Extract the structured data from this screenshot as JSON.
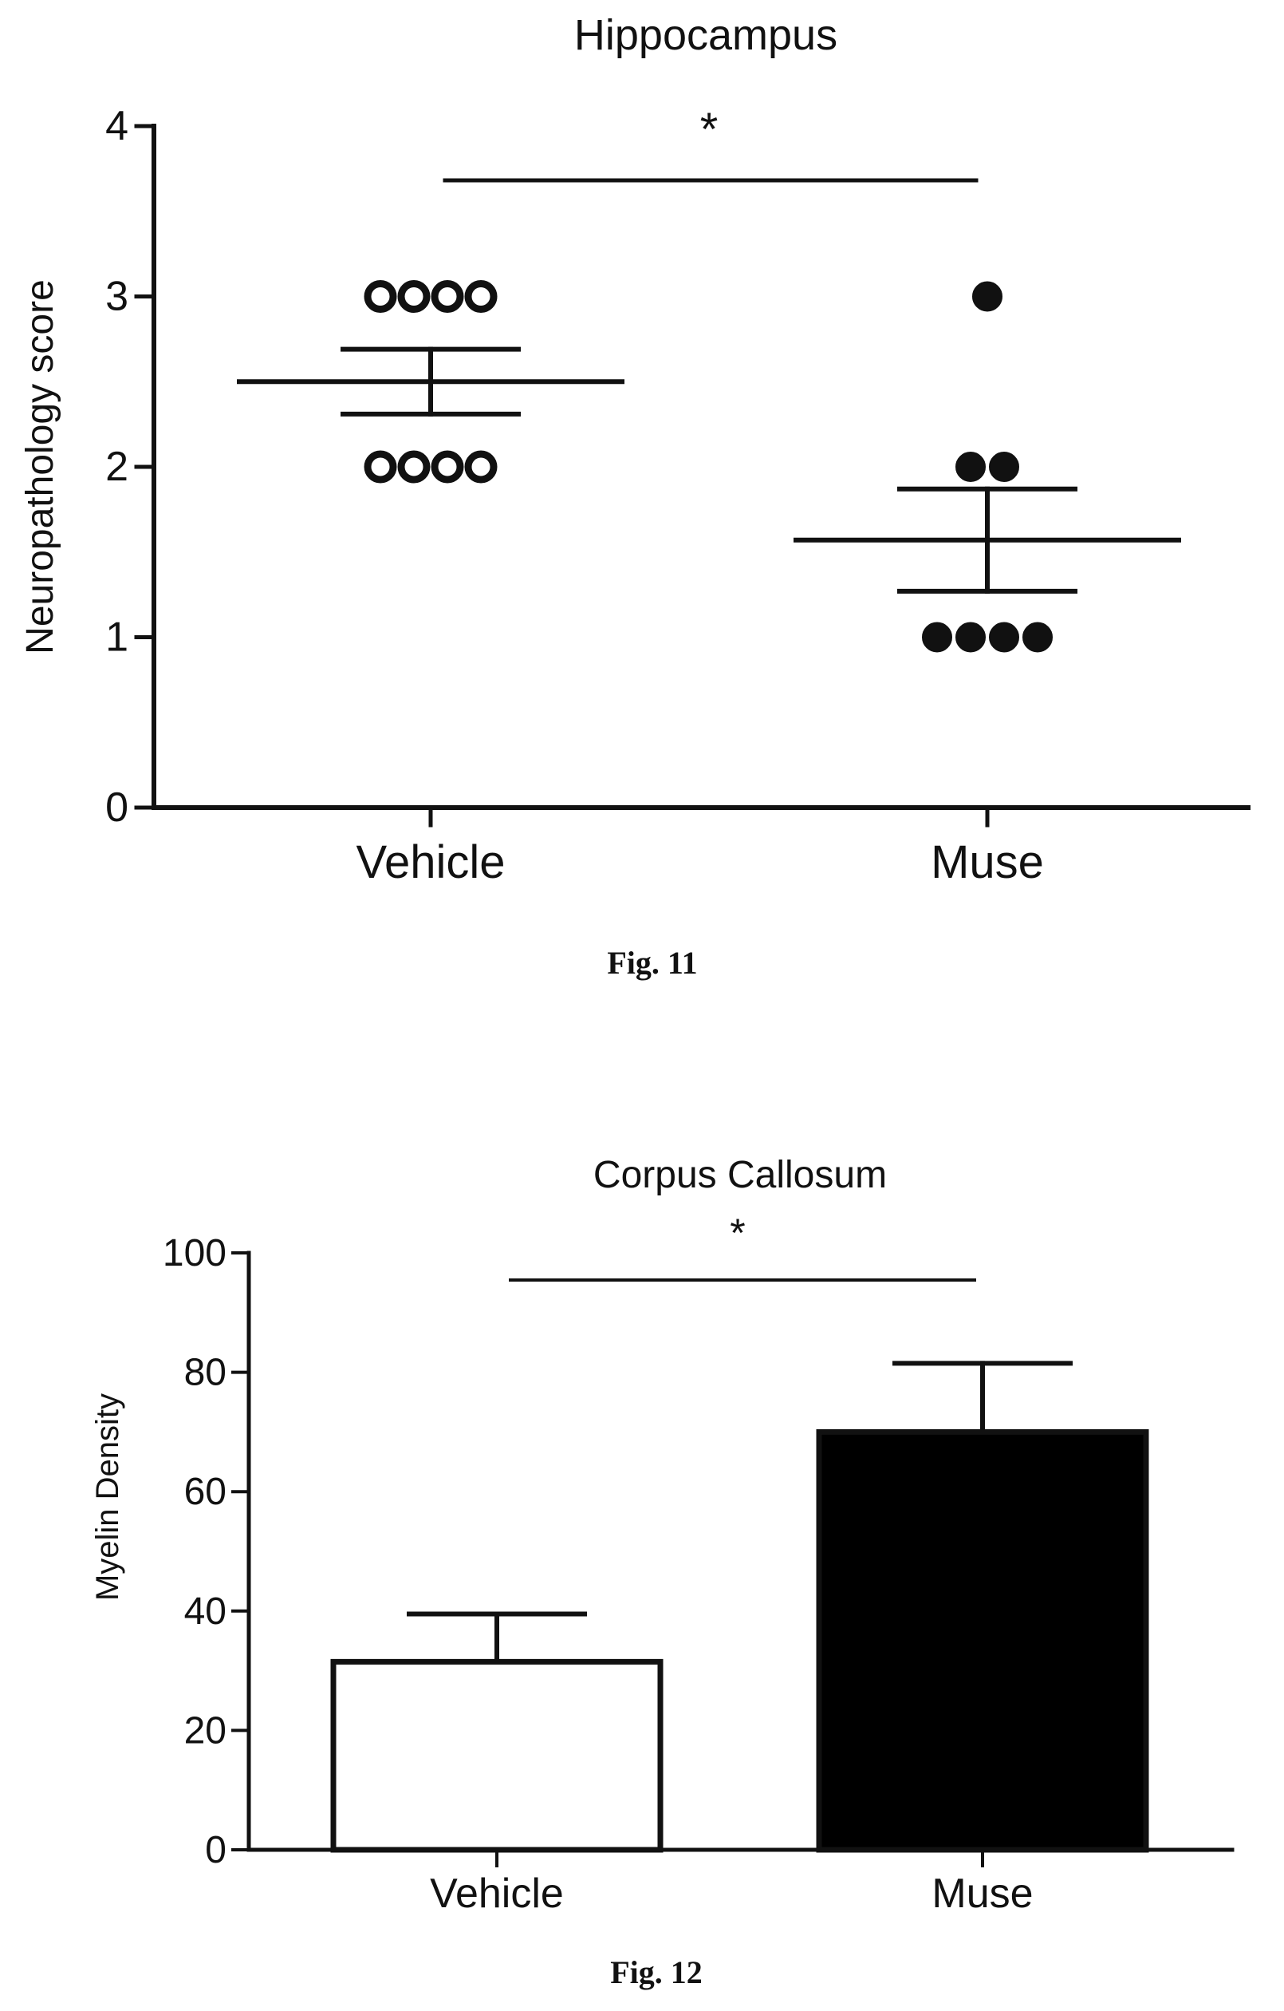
{
  "chart_data": [
    {
      "type": "scatter",
      "title": "Hippocampus",
      "xlabel": "",
      "ylabel": "Neuropathology score",
      "ylim": [
        0,
        4
      ],
      "yticks": [
        "0",
        "1",
        "2",
        "3",
        "4"
      ],
      "categories": [
        "Vehicle",
        "Muse"
      ],
      "series": [
        {
          "category": "Vehicle",
          "marker": "open-circle",
          "points": [
            3,
            3,
            3,
            3,
            2,
            2,
            2,
            2
          ],
          "mean": 2.5,
          "sem": 0.19
        },
        {
          "category": "Muse",
          "marker": "filled-circle",
          "points": [
            3,
            2,
            2,
            1,
            1,
            1,
            1
          ],
          "mean": 1.57,
          "sem": 0.3
        }
      ],
      "significance": {
        "between": [
          "Vehicle",
          "Muse"
        ],
        "label": "*"
      },
      "caption": "Fig. 11"
    },
    {
      "type": "bar",
      "title": "Corpus Callosum",
      "xlabel": "",
      "ylabel": "Myelin Density",
      "ylim": [
        0,
        100
      ],
      "yticks": [
        "0",
        "20",
        "40",
        "60",
        "80",
        "100"
      ],
      "categories": [
        "Vehicle",
        "Muse"
      ],
      "values": [
        31.5,
        70
      ],
      "errors": [
        8,
        11.5
      ],
      "colors": [
        "#ffffff",
        "#000000"
      ],
      "significance": {
        "between": [
          "Vehicle",
          "Muse"
        ],
        "label": "*"
      },
      "caption": "Fig. 12"
    }
  ]
}
